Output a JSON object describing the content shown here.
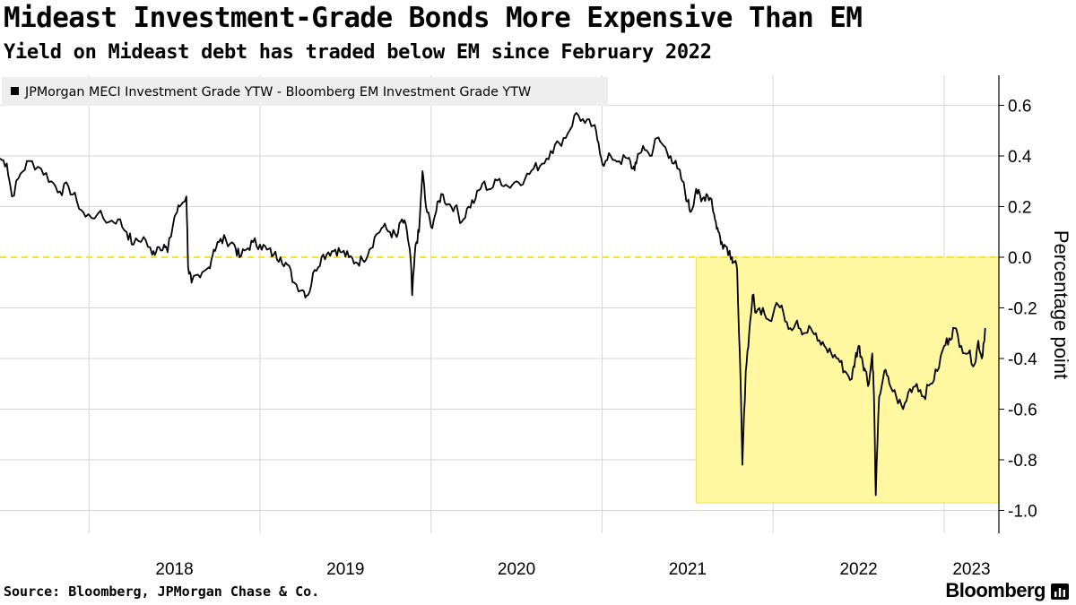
{
  "header": {
    "title": "Mideast Investment-Grade Bonds More Expensive Than EM",
    "subtitle": "Yield on Mideast debt has traded below EM since February 2022"
  },
  "footer": {
    "source": "Source: Bloomberg, JPMorgan Chase & Co.",
    "brand": "Bloomberg"
  },
  "colors": {
    "line": "#000000",
    "highlight_fill": "#fff8a0",
    "highlight_stroke": "#f2df55",
    "zero_line": "#f7e13a",
    "grid": "#d6d6d6",
    "legend_bg": "#eeeeee"
  },
  "chart_data": {
    "type": "line",
    "title": "Mideast Investment-Grade Bonds More Expensive Than EM",
    "subtitle": "Yield on Mideast debt has traded below EM since February 2022",
    "ylabel": "Percentage point",
    "xlabel": "",
    "ylim": [
      -1.0,
      0.7
    ],
    "yticks": [
      0.6,
      0.4,
      0.2,
      0.0,
      -0.2,
      -0.4,
      -0.6,
      -0.8,
      -1.0
    ],
    "ytick_labels": [
      "0.6",
      "0.4",
      "0.2",
      "0.0",
      "-0.2",
      "-0.4",
      "-0.6",
      "-0.8",
      "-1.0"
    ],
    "xlim": [
      2017.48,
      2023.32
    ],
    "xtick_labels": [
      {
        "year": 2018,
        "label": "2018"
      },
      {
        "year": 2019,
        "label": "2019"
      },
      {
        "year": 2020,
        "label": "2020"
      },
      {
        "year": 2021,
        "label": "2021"
      },
      {
        "year": 2022,
        "label": "2022"
      },
      {
        "year": 2023,
        "label": "2023"
      }
    ],
    "grid": true,
    "legend_position": "top-left",
    "reference_line": {
      "y": 0.0,
      "style": "dashed"
    },
    "highlight_region": {
      "x_start": 2021.55,
      "x_end": 2023.32,
      "y_start": 0.0,
      "y_end": -0.97
    },
    "series": [
      {
        "name": "JPMorgan MECI Investment Grade YTW - Bloomberg EM Investment Grade YTW",
        "points": [
          [
            2017.48,
            0.39
          ],
          [
            2017.52,
            0.37
          ],
          [
            2017.55,
            0.24
          ],
          [
            2017.6,
            0.33
          ],
          [
            2017.65,
            0.38
          ],
          [
            2017.72,
            0.35
          ],
          [
            2017.78,
            0.3
          ],
          [
            2017.83,
            0.26
          ],
          [
            2017.88,
            0.28
          ],
          [
            2017.93,
            0.22
          ],
          [
            2017.98,
            0.16
          ],
          [
            2018.05,
            0.17
          ],
          [
            2018.12,
            0.14
          ],
          [
            2018.17,
            0.15
          ],
          [
            2018.22,
            0.1
          ],
          [
            2018.26,
            0.05
          ],
          [
            2018.32,
            0.08
          ],
          [
            2018.37,
            0.01
          ],
          [
            2018.4,
            0.04
          ],
          [
            2018.44,
            0.05
          ],
          [
            2018.46,
            0.02
          ],
          [
            2018.5,
            0.16
          ],
          [
            2018.53,
            0.2
          ],
          [
            2018.57,
            0.24
          ],
          [
            2018.58,
            -0.04
          ],
          [
            2018.6,
            -0.1
          ],
          [
            2018.65,
            -0.08
          ],
          [
            2018.7,
            -0.04
          ],
          [
            2018.73,
            0.03
          ],
          [
            2018.76,
            0.06
          ],
          [
            2018.8,
            0.07
          ],
          [
            2018.85,
            0.05
          ],
          [
            2018.88,
            0.0
          ],
          [
            2018.92,
            0.03
          ],
          [
            2018.96,
            0.06
          ],
          [
            2019.0,
            0.05
          ],
          [
            2019.04,
            0.03
          ],
          [
            2019.08,
            0.01
          ],
          [
            2019.12,
            0.0
          ],
          [
            2019.16,
            -0.03
          ],
          [
            2019.2,
            -0.1
          ],
          [
            2019.25,
            -0.13
          ],
          [
            2019.28,
            -0.15
          ],
          [
            2019.32,
            -0.05
          ],
          [
            2019.36,
            0.0
          ],
          [
            2019.4,
            0.02
          ],
          [
            2019.44,
            0.03
          ],
          [
            2019.48,
            0.02
          ],
          [
            2019.52,
            0.0
          ],
          [
            2019.56,
            -0.02
          ],
          [
            2019.6,
            -0.01
          ],
          [
            2019.64,
            0.03
          ],
          [
            2019.68,
            0.09
          ],
          [
            2019.72,
            0.12
          ],
          [
            2019.76,
            0.1
          ],
          [
            2019.8,
            0.08
          ],
          [
            2019.83,
            0.15
          ],
          [
            2019.86,
            0.1
          ],
          [
            2019.88,
            0.0
          ],
          [
            2019.89,
            -0.15
          ],
          [
            2019.91,
            0.05
          ],
          [
            2019.93,
            0.1
          ],
          [
            2019.95,
            0.34
          ],
          [
            2019.97,
            0.2
          ],
          [
            2020.0,
            0.12
          ],
          [
            2020.03,
            0.18
          ],
          [
            2020.06,
            0.25
          ],
          [
            2020.1,
            0.21
          ],
          [
            2020.14,
            0.2
          ],
          [
            2020.18,
            0.14
          ],
          [
            2020.22,
            0.2
          ],
          [
            2020.26,
            0.23
          ],
          [
            2020.3,
            0.29
          ],
          [
            2020.35,
            0.27
          ],
          [
            2020.4,
            0.31
          ],
          [
            2020.45,
            0.28
          ],
          [
            2020.5,
            0.3
          ],
          [
            2020.55,
            0.31
          ],
          [
            2020.6,
            0.35
          ],
          [
            2020.65,
            0.37
          ],
          [
            2020.7,
            0.42
          ],
          [
            2020.75,
            0.45
          ],
          [
            2020.8,
            0.49
          ],
          [
            2020.85,
            0.57
          ],
          [
            2020.9,
            0.53
          ],
          [
            2020.95,
            0.52
          ],
          [
            2020.98,
            0.45
          ],
          [
            2021.01,
            0.36
          ],
          [
            2021.05,
            0.4
          ],
          [
            2021.1,
            0.38
          ],
          [
            2021.15,
            0.39
          ],
          [
            2021.18,
            0.35
          ],
          [
            2021.2,
            0.37
          ],
          [
            2021.24,
            0.44
          ],
          [
            2021.28,
            0.4
          ],
          [
            2021.32,
            0.47
          ],
          [
            2021.36,
            0.44
          ],
          [
            2021.4,
            0.4
          ],
          [
            2021.44,
            0.35
          ],
          [
            2021.47,
            0.3
          ],
          [
            2021.5,
            0.22
          ],
          [
            2021.52,
            0.18
          ],
          [
            2021.55,
            0.27
          ],
          [
            2021.58,
            0.22
          ],
          [
            2021.61,
            0.25
          ],
          [
            2021.64,
            0.23
          ],
          [
            2021.66,
            0.15
          ],
          [
            2021.68,
            0.1
          ],
          [
            2021.7,
            0.06
          ],
          [
            2021.73,
            0.04
          ],
          [
            2021.76,
            0.0
          ],
          [
            2021.77,
            -0.02
          ],
          [
            2021.79,
            -0.05
          ],
          [
            2021.81,
            -0.5
          ],
          [
            2021.82,
            -0.82
          ],
          [
            2021.84,
            -0.45
          ],
          [
            2021.86,
            -0.3
          ],
          [
            2021.88,
            -0.15
          ],
          [
            2021.9,
            -0.22
          ],
          [
            2021.94,
            -0.2
          ],
          [
            2021.98,
            -0.25
          ],
          [
            2022.02,
            -0.18
          ],
          [
            2022.06,
            -0.22
          ],
          [
            2022.1,
            -0.28
          ],
          [
            2022.14,
            -0.25
          ],
          [
            2022.18,
            -0.3
          ],
          [
            2022.22,
            -0.28
          ],
          [
            2022.26,
            -0.33
          ],
          [
            2022.3,
            -0.35
          ],
          [
            2022.34,
            -0.38
          ],
          [
            2022.38,
            -0.4
          ],
          [
            2022.42,
            -0.45
          ],
          [
            2022.46,
            -0.48
          ],
          [
            2022.48,
            -0.4
          ],
          [
            2022.5,
            -0.35
          ],
          [
            2022.52,
            -0.4
          ],
          [
            2022.54,
            -0.45
          ],
          [
            2022.56,
            -0.5
          ],
          [
            2022.58,
            -0.38
          ],
          [
            2022.59,
            -0.55
          ],
          [
            2022.6,
            -0.94
          ],
          [
            2022.62,
            -0.55
          ],
          [
            2022.65,
            -0.45
          ],
          [
            2022.68,
            -0.5
          ],
          [
            2022.72,
            -0.55
          ],
          [
            2022.76,
            -0.6
          ],
          [
            2022.8,
            -0.52
          ],
          [
            2022.84,
            -0.5
          ],
          [
            2022.88,
            -0.55
          ],
          [
            2022.92,
            -0.5
          ],
          [
            2022.96,
            -0.45
          ],
          [
            2023.0,
            -0.35
          ],
          [
            2023.03,
            -0.32
          ],
          [
            2023.06,
            -0.28
          ],
          [
            2023.1,
            -0.35
          ],
          [
            2023.14,
            -0.38
          ],
          [
            2023.18,
            -0.42
          ],
          [
            2023.2,
            -0.33
          ],
          [
            2023.22,
            -0.4
          ],
          [
            2023.24,
            -0.28
          ]
        ]
      }
    ]
  }
}
